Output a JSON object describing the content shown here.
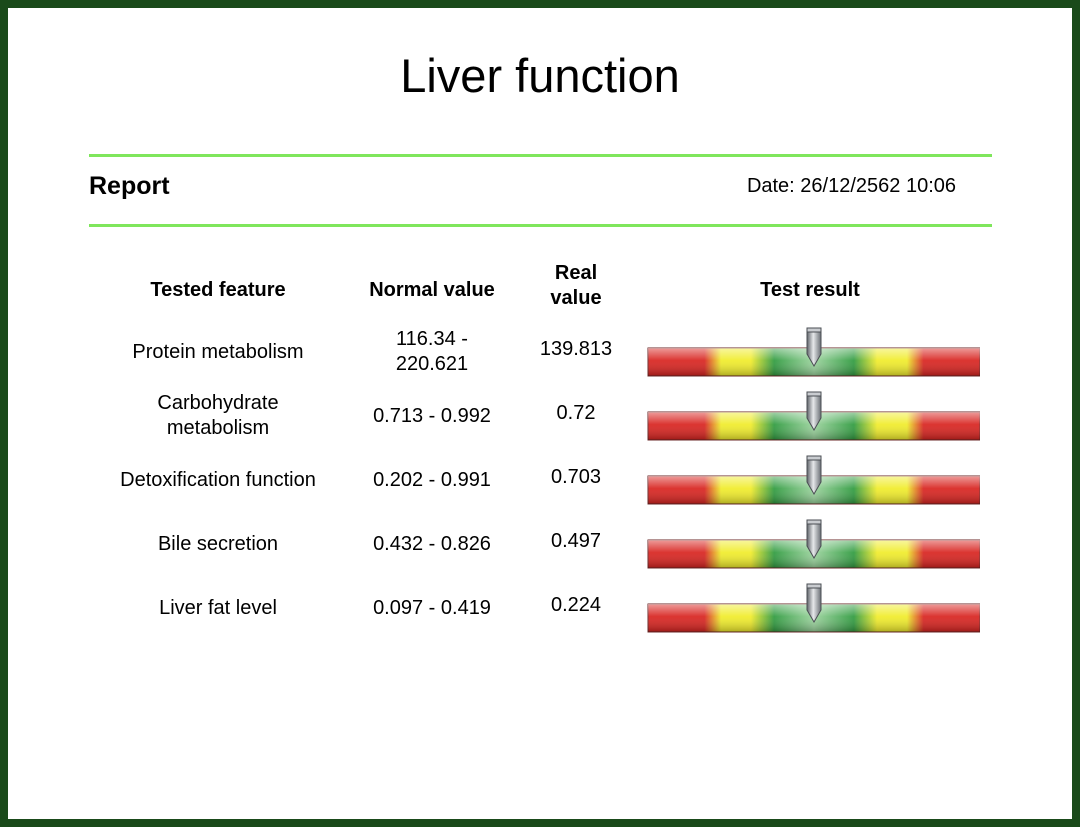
{
  "title": "Liver function",
  "report": {
    "label": "Report",
    "date_text": "Date: 26/12/2562 10:06"
  },
  "colors": {
    "frame": "#1a4a1a",
    "rule": "#7fe65c",
    "red": "#d8231f",
    "yellow": "#f0ec2a",
    "green": "#2e9a3e",
    "needle": "#8a8f96"
  },
  "table": {
    "headers": {
      "feature": "Tested feature",
      "normal": "Normal value",
      "real_line1": "Real",
      "real_line2": "value",
      "result": "Test result"
    },
    "rows": [
      {
        "feature_lines": [
          "Protein metabolism"
        ],
        "normal_lines": [
          "116.34 -",
          "220.621"
        ],
        "real": "139.813",
        "indicator_level": 0.5
      },
      {
        "feature_lines": [
          "Carbohydrate",
          "metabolism"
        ],
        "normal_lines": [
          "0.713 - 0.992"
        ],
        "real": "0.72",
        "indicator_level": 0.5
      },
      {
        "feature_lines": [
          "Detoxification function"
        ],
        "normal_lines": [
          "0.202 - 0.991"
        ],
        "real": "0.703",
        "indicator_level": 0.5
      },
      {
        "feature_lines": [
          "Bile secretion"
        ],
        "normal_lines": [
          "0.432 - 0.826"
        ],
        "real": "0.497",
        "indicator_level": 0.5
      },
      {
        "feature_lines": [
          "Liver fat level"
        ],
        "normal_lines": [
          "0.097 - 0.419"
        ],
        "real": "0.224",
        "indicator_level": 0.5
      }
    ]
  }
}
